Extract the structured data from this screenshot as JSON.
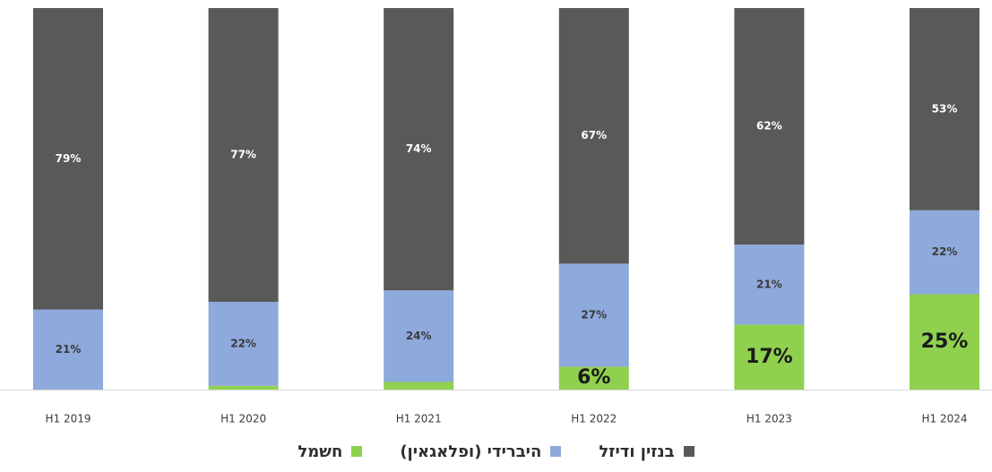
{
  "chart_data": {
    "type": "bar",
    "stacked": true,
    "categories": [
      "H1 2019",
      "H1 2020",
      "H1 2021",
      "H1 2022",
      "H1 2023",
      "H1 2024"
    ],
    "series": [
      {
        "name": "חשמל",
        "color": "#8fd14f",
        "values": [
          0,
          1,
          2,
          6,
          17,
          25
        ],
        "labels": [
          "",
          "",
          "",
          "6%",
          "17%",
          "25%"
        ]
      },
      {
        "name": "היברידי (ופלאגאין)",
        "color": "#8ea9db",
        "values": [
          21,
          22,
          24,
          27,
          21,
          22
        ],
        "labels": [
          "21%",
          "22%",
          "24%",
          "27%",
          "21%",
          "22%"
        ]
      },
      {
        "name": "בנזין ודיזל",
        "color": "#595959",
        "values": [
          79,
          77,
          74,
          67,
          62,
          53
        ],
        "labels": [
          "79%",
          "77%",
          "74%",
          "67%",
          "62%",
          "53%"
        ]
      }
    ],
    "ylim": [
      0,
      100
    ],
    "grid": false,
    "legend_placement": "bottom"
  },
  "legend": {
    "items": [
      {
        "label": "בנזין ודיזל",
        "color": "#595959"
      },
      {
        "label": "היברידי (ופלאגאין)",
        "color": "#8ea9db"
      },
      {
        "label": "חשמל",
        "color": "#8fd14f"
      }
    ]
  }
}
